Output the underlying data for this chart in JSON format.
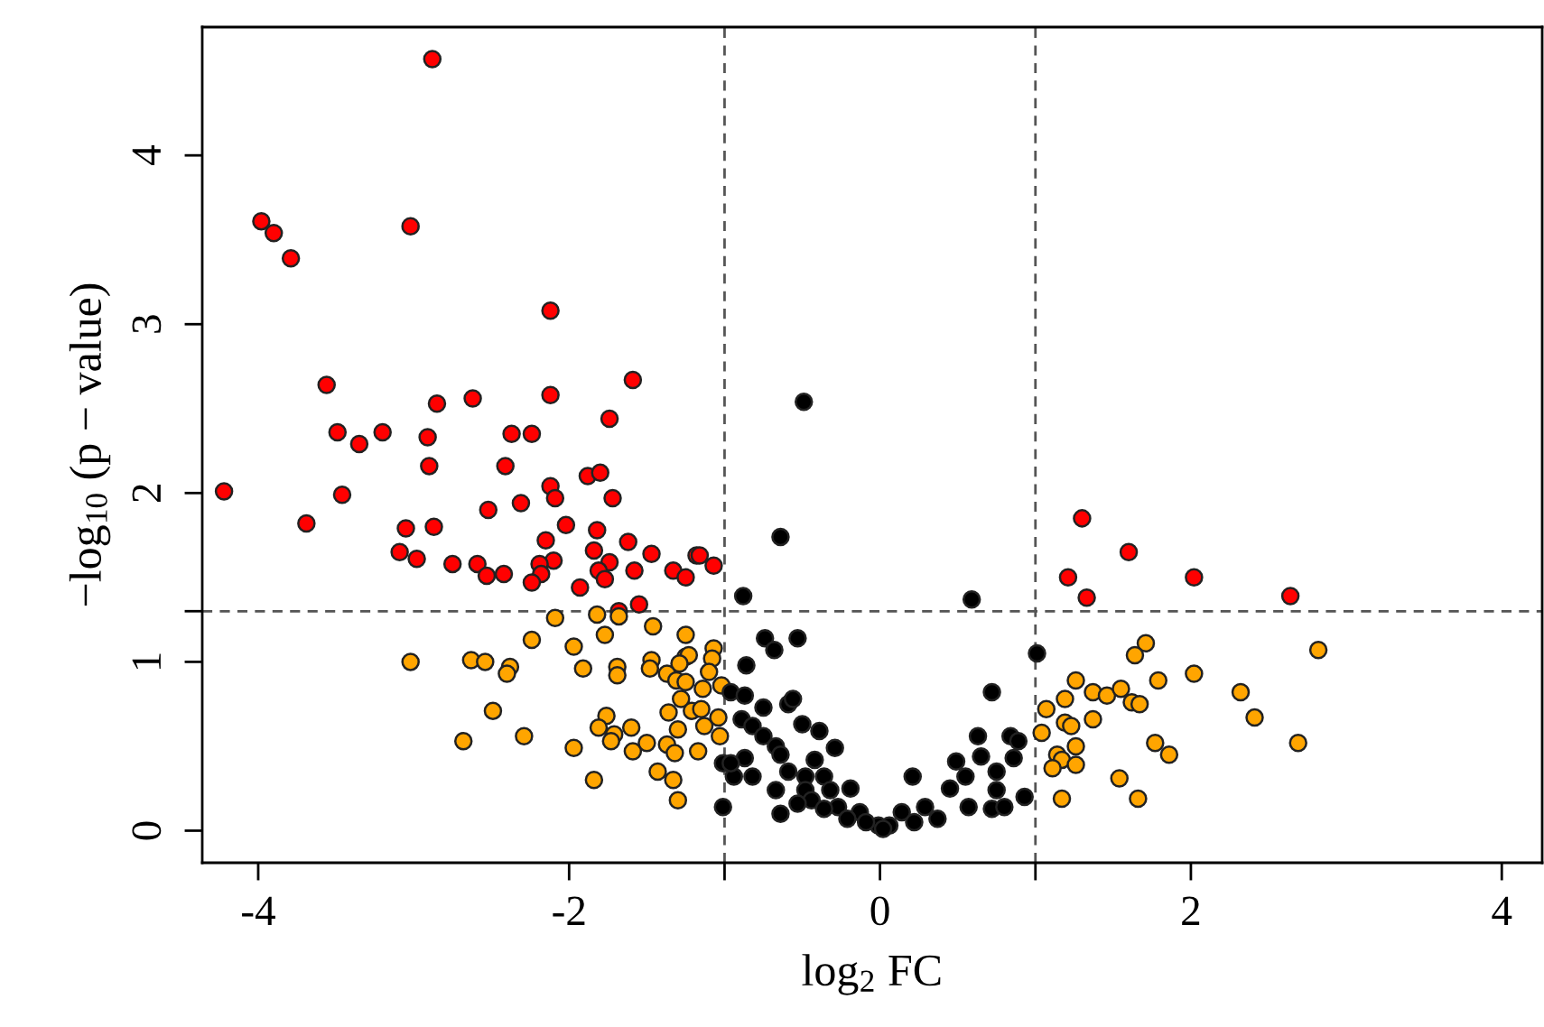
{
  "chart_data": {
    "type": "scatter",
    "xlabel": "log$_{2}$ FC",
    "ylabel": "−log$_{10}$ (p − value)",
    "marker": "circle",
    "grid": false,
    "xlim": [
      -4.36,
      4.26
    ],
    "ylim": [
      -0.19,
      4.76
    ],
    "xticks": [
      -4,
      {
        "value": -1,
        "label": null
      },
      -2,
      0,
      {
        "value": 1,
        "label": null
      },
      2,
      4
    ],
    "yticks": [
      0,
      1,
      {
        "value": 1.3,
        "label": null
      },
      2,
      3,
      4
    ],
    "ref_lines": [
      {
        "axis": "x",
        "value": -1,
        "line_style": "dashed",
        "color": "#555555"
      },
      {
        "axis": "x",
        "value": 1,
        "line_style": "dashed",
        "color": "#555555"
      },
      {
        "axis": "y",
        "value": 1.3,
        "line_style": "dashed",
        "color": "#555555"
      }
    ],
    "series": [
      {
        "color": "#ff0000",
        "x": [
          -2.88,
          -3.98,
          -3.9,
          -3.79,
          -3.02,
          -2.12,
          -3.56,
          -3.49,
          -3.35,
          -3.2,
          -2.91,
          -2.85,
          -2.62,
          -2.37,
          -2.24,
          -2.12,
          -1.74,
          -1.59,
          -4.22,
          -3.69,
          -3.46,
          -2.9,
          -2.41,
          -3.05,
          -2.87,
          -3.09,
          -2.98,
          -2.75,
          -2.59,
          -2.53,
          -2.42,
          -2.52,
          -2.31,
          -2.12,
          -2.09,
          -1.88,
          -1.8,
          -1.72,
          -2.15,
          -2.02,
          -1.82,
          -1.84,
          -1.62,
          -2.1,
          -2.19,
          -2.18,
          -2.24,
          -1.93,
          -1.74,
          -1.81,
          -1.77,
          -1.58,
          -1.47,
          -1.33,
          -1.25,
          -1.18,
          -1.16,
          -1.07,
          -1.68,
          -1.55,
          1.3,
          1.6,
          1.21,
          1.33,
          2.02,
          2.64
        ],
        "values": [
          4.57,
          3.61,
          3.54,
          3.39,
          3.58,
          3.08,
          2.64,
          2.36,
          2.29,
          2.36,
          2.33,
          2.53,
          2.56,
          2.35,
          2.35,
          2.58,
          2.44,
          2.67,
          2.01,
          1.82,
          1.99,
          2.16,
          2.16,
          1.79,
          1.8,
          1.65,
          1.61,
          1.58,
          1.58,
          1.51,
          1.52,
          1.9,
          1.94,
          2.04,
          1.97,
          2.1,
          2.12,
          1.97,
          1.72,
          1.81,
          1.78,
          1.66,
          1.71,
          1.6,
          1.58,
          1.52,
          1.47,
          1.44,
          1.59,
          1.54,
          1.49,
          1.54,
          1.64,
          1.54,
          1.5,
          1.63,
          1.63,
          1.57,
          1.3,
          1.34,
          1.85,
          1.65,
          1.5,
          1.38,
          1.5,
          1.39
        ]
      },
      {
        "color": "#ffa500",
        "x": [
          -2.09,
          -1.82,
          -1.68,
          -1.46,
          -1.25,
          -2.24,
          -1.97,
          -1.77,
          -1.07,
          -3.02,
          -2.63,
          -2.54,
          -2.38,
          -2.4,
          -1.91,
          -1.69,
          -1.69,
          -1.47,
          -1.48,
          -1.25,
          -1.23,
          -1.29,
          -1.08,
          -1.37,
          -1.31,
          -1.25,
          -1.1,
          -1.14,
          -1.02,
          -1.28,
          -2.49,
          -1.76,
          -1.36,
          -1.21,
          -1.15,
          -1.04,
          -1.81,
          -1.71,
          -1.6,
          -1.3,
          -1.13,
          -2.68,
          -2.29,
          -1.97,
          -1.73,
          -1.59,
          -1.5,
          -1.37,
          -1.32,
          -1.17,
          -1.03,
          -1.43,
          -1.84,
          -1.33,
          -1.3,
          2.82,
          1.71,
          1.64,
          2.02,
          1.79,
          1.26,
          1.19,
          1.37,
          1.46,
          1.55,
          1.62,
          1.67,
          2.32,
          2.41,
          1.07,
          1.19,
          1.23,
          1.37,
          1.04,
          1.26,
          1.77,
          1.86,
          2.69,
          1.14,
          1.17,
          1.11,
          1.26,
          1.54,
          1.17,
          1.66
        ],
        "values": [
          1.26,
          1.28,
          1.27,
          1.21,
          1.16,
          1.13,
          1.09,
          1.16,
          1.08,
          1.0,
          1.01,
          1.0,
          0.97,
          0.93,
          0.96,
          0.97,
          0.92,
          1.01,
          0.96,
          1.03,
          1.04,
          0.99,
          1.02,
          0.93,
          0.89,
          0.88,
          0.94,
          0.84,
          0.86,
          0.78,
          0.71,
          0.68,
          0.7,
          0.71,
          0.72,
          0.67,
          0.61,
          0.57,
          0.61,
          0.6,
          0.62,
          0.53,
          0.56,
          0.49,
          0.53,
          0.47,
          0.52,
          0.51,
          0.46,
          0.47,
          0.56,
          0.35,
          0.3,
          0.3,
          0.18,
          1.07,
          1.11,
          1.04,
          0.93,
          0.89,
          0.89,
          0.78,
          0.82,
          0.8,
          0.84,
          0.76,
          0.75,
          0.82,
          0.67,
          0.72,
          0.64,
          0.62,
          0.66,
          0.58,
          0.5,
          0.52,
          0.45,
          0.52,
          0.45,
          0.42,
          0.37,
          0.39,
          0.31,
          0.19,
          0.19
        ]
      },
      {
        "color": "#000000",
        "x": [
          -0.49,
          -0.64,
          -0.88,
          0.59,
          1.01,
          -0.74,
          -0.68,
          -0.53,
          -0.86,
          0.72,
          -0.96,
          -0.87,
          -0.75,
          -0.59,
          -0.56,
          -0.89,
          -0.82,
          -0.5,
          -0.39,
          0.63,
          0.84,
          0.89,
          -0.75,
          -0.67,
          -0.29,
          -1.01,
          -0.87,
          -0.64,
          -0.59,
          -0.42,
          0.65,
          0.86,
          0.49,
          -0.94,
          -0.82,
          -0.48,
          -0.36,
          0.21,
          0.55,
          0.75,
          -0.67,
          -0.48,
          -0.32,
          -0.19,
          0.45,
          0.75,
          0.93,
          -1.01,
          -0.64,
          -0.44,
          -0.27,
          -0.13,
          -0.01,
          -0.09,
          0.06,
          0.14,
          0.29,
          0.22,
          0.37,
          0.57,
          0.72,
          0.8,
          -0.21,
          -0.36,
          -0.53,
          0.02,
          -0.96
        ],
        "values": [
          2.54,
          1.74,
          1.39,
          1.37,
          1.05,
          1.14,
          1.07,
          1.14,
          0.98,
          0.82,
          0.82,
          0.8,
          0.73,
          0.75,
          0.78,
          0.66,
          0.62,
          0.63,
          0.59,
          0.56,
          0.56,
          0.53,
          0.56,
          0.5,
          0.49,
          0.4,
          0.43,
          0.45,
          0.35,
          0.42,
          0.44,
          0.43,
          0.41,
          0.32,
          0.32,
          0.32,
          0.32,
          0.32,
          0.32,
          0.35,
          0.24,
          0.24,
          0.24,
          0.25,
          0.25,
          0.24,
          0.2,
          0.14,
          0.1,
          0.18,
          0.14,
          0.11,
          0.03,
          0.05,
          0.03,
          0.11,
          0.14,
          0.05,
          0.07,
          0.14,
          0.13,
          0.14,
          0.07,
          0.13,
          0.16,
          0.01,
          0.4
        ]
      }
    ]
  }
}
